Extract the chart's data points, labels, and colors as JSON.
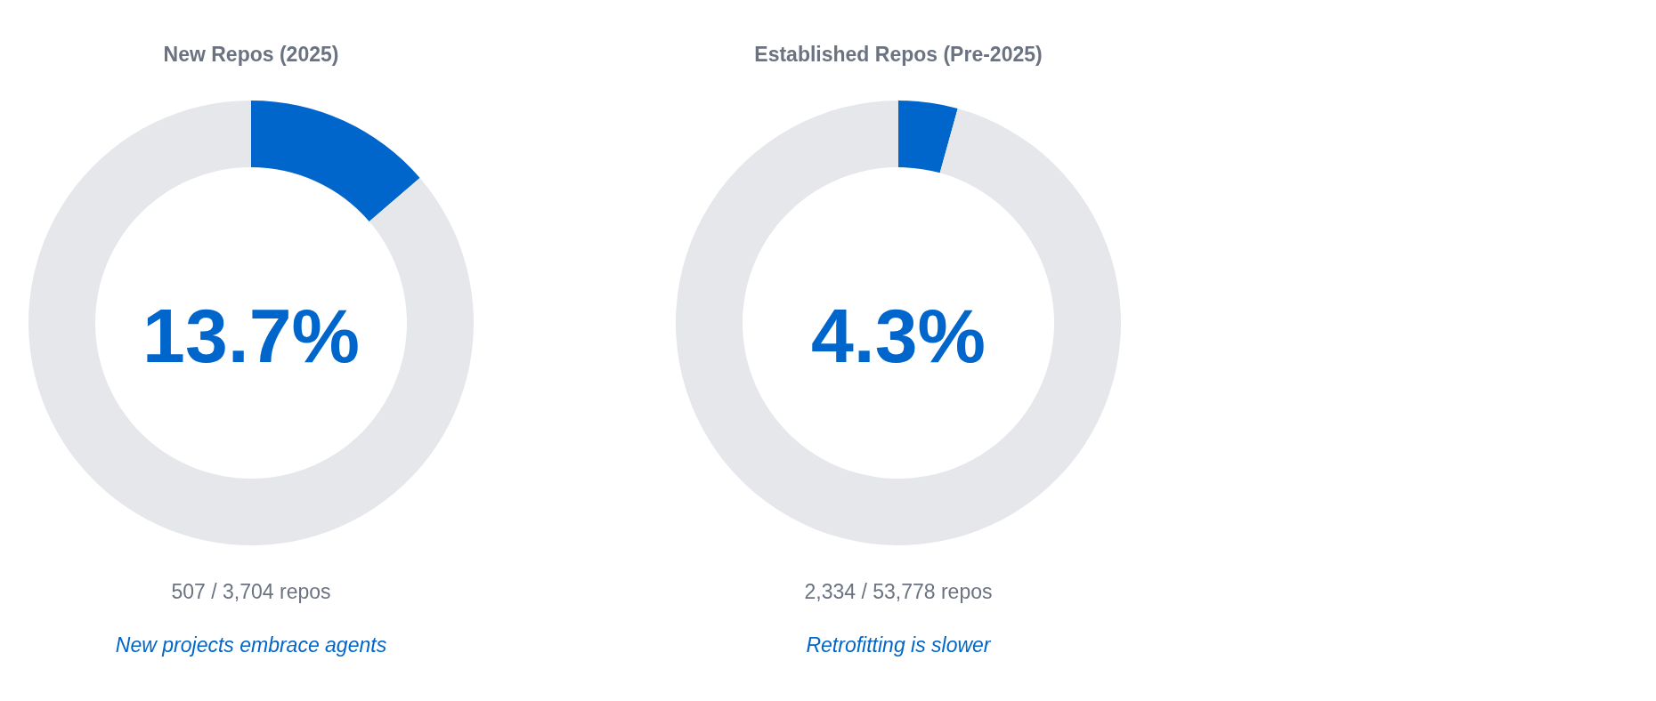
{
  "chart_data": [
    {
      "type": "donut",
      "title": "New Repos (2025)",
      "categories": [
        null,
        null
      ],
      "values": [
        13.7,
        86.3
      ],
      "colors": [
        "#0066cc",
        "#e5e7eb"
      ],
      "annotations": [
        "13.7%",
        "507 / 3,704 repos",
        "New projects embrace agents"
      ]
    },
    {
      "type": "donut",
      "title": "Established Repos (Pre-2025)",
      "categories": [
        null,
        null
      ],
      "values": [
        4.3,
        95.7
      ],
      "colors": [
        "#0066cc",
        "#e5e7eb"
      ],
      "annotations": [
        "4.3%",
        "2,334 / 53,778 repos",
        "Retrofitting is slower"
      ]
    }
  ]
}
